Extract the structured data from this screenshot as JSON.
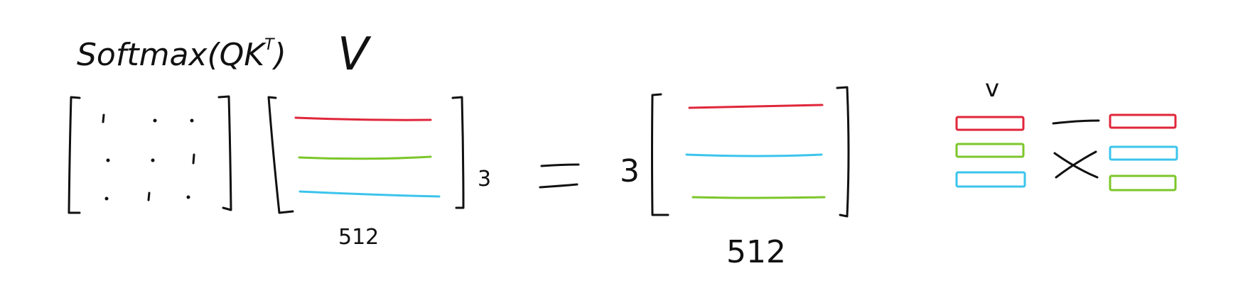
{
  "labels": {
    "softmax": "Softmax(QK",
    "softmax_sup": "T",
    "softmax_close": ")",
    "v_top": "V",
    "rows_dim": "3",
    "cols_dim_left": "512",
    "equals": "=",
    "rows_dim_result": "3",
    "cols_dim_result": "512",
    "v_small": "v",
    "times": "×"
  },
  "colors": {
    "ink": "#111111",
    "red": "#e0263a",
    "green": "#7cc62a",
    "cyan": "#3cc4ec"
  },
  "v_rows": [
    "red",
    "green",
    "cyan"
  ],
  "result_rows": [
    "red",
    "cyan",
    "green"
  ],
  "swap_left": [
    "red",
    "green",
    "cyan"
  ],
  "swap_right": [
    "red",
    "cyan",
    "green"
  ],
  "matrix_dots": [
    [
      "'",
      ".",
      "."
    ],
    [
      ".",
      ".",
      "'"
    ],
    [
      ".",
      "'",
      "."
    ]
  ]
}
